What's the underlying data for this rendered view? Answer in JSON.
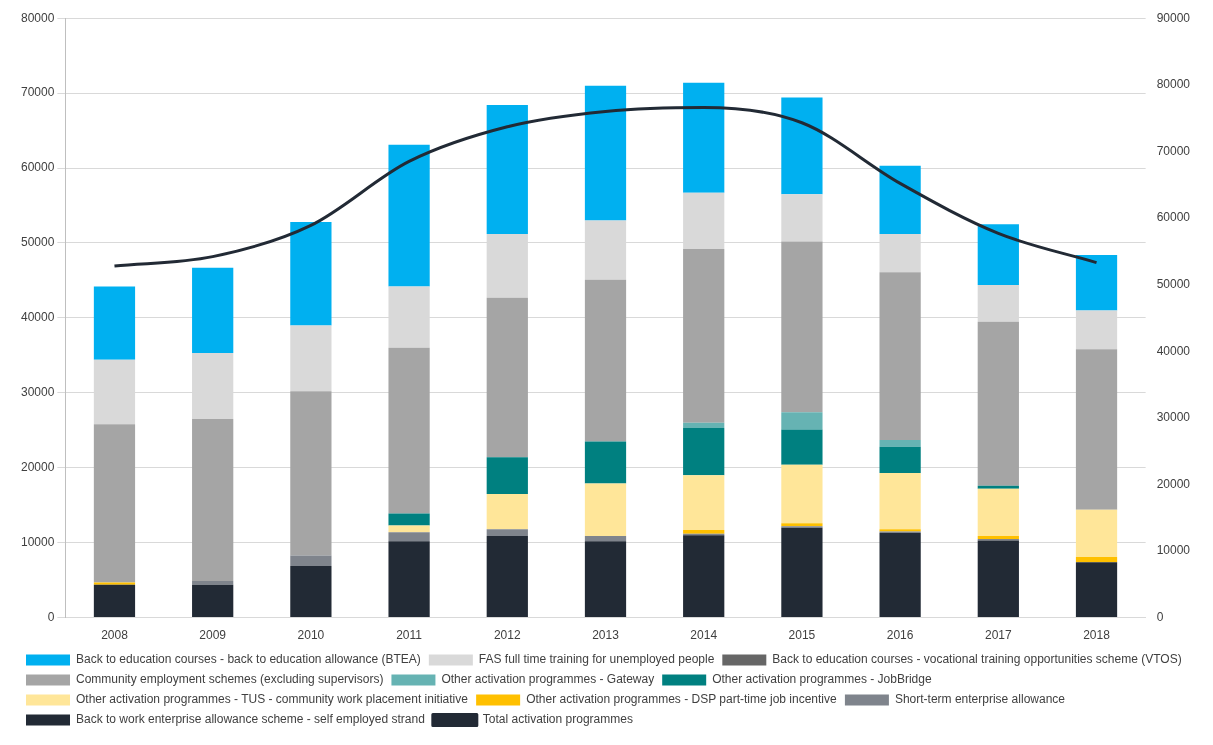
{
  "chart_data": {
    "type": "bar",
    "stacked": true,
    "categories": [
      "2008",
      "2009",
      "2010",
      "2011",
      "2012",
      "2013",
      "2014",
      "2015",
      "2016",
      "2017",
      "2018"
    ],
    "series": [
      {
        "name": "Back to work enterprise allowance scheme - self employed strand",
        "color": "#222a35",
        "values": [
          4400,
          4400,
          6900,
          10200,
          10900,
          10200,
          11000,
          12000,
          11300,
          10300,
          7400
        ]
      },
      {
        "name": "Short-term enterprise allowance",
        "color": "#7f848c",
        "values": [
          0,
          500,
          1400,
          1200,
          900,
          700,
          200,
          200,
          200,
          200,
          0
        ]
      },
      {
        "name": "Other activation programmes - DSP part-time job incentive",
        "color": "#ffc000",
        "values": [
          300,
          0,
          0,
          0,
          0,
          0,
          500,
          400,
          300,
          400,
          700
        ]
      },
      {
        "name": "Other activation programmes - TUS - community work placement initiative",
        "color": "#ffe699",
        "values": [
          0,
          0,
          0,
          900,
          4700,
          7000,
          7300,
          7800,
          7500,
          6300,
          6300
        ]
      },
      {
        "name": "Other activation programmes - JobBridge",
        "color": "#008080",
        "values": [
          0,
          0,
          0,
          1600,
          4900,
          5600,
          6300,
          4700,
          3500,
          400,
          0
        ]
      },
      {
        "name": "Other activation programmes - Gateway",
        "color": "#66b3b3",
        "values": [
          0,
          0,
          0,
          0,
          0,
          0,
          700,
          2300,
          900,
          0,
          0
        ]
      },
      {
        "name": "Community employment schemes (excluding supervisors)",
        "color": "#a5a5a5",
        "values": [
          21100,
          21600,
          21900,
          22100,
          21300,
          21600,
          23200,
          22800,
          22400,
          21900,
          21400
        ]
      },
      {
        "name": "Back to education courses - vocational training opportunities scheme (VTOS)",
        "color": "#666666",
        "values": [
          0,
          0,
          0,
          0,
          0,
          0,
          0,
          0,
          0,
          0,
          0
        ]
      },
      {
        "name": "FAS full time training for unemployed people",
        "color": "#d9d9d9",
        "values": [
          8600,
          8800,
          8800,
          8200,
          8500,
          7900,
          7500,
          6300,
          5100,
          4900,
          5200
        ]
      },
      {
        "name": "Back to education courses - back to education allowance (BTEA)",
        "color": "#00b0f0",
        "values": [
          9800,
          11400,
          13800,
          18900,
          17200,
          18000,
          14700,
          12900,
          9100,
          8100,
          7400
        ]
      },
      {
        "name": "Total activation programmes",
        "type": "line",
        "axis": "y2",
        "color": "#222a35",
        "values": [
          52800,
          54200,
          58900,
          68500,
          73700,
          76000,
          76600,
          74300,
          65200,
          57700,
          53300
        ]
      }
    ],
    "ylim": [
      0,
      80000
    ],
    "yticks": [
      0,
      10000,
      20000,
      30000,
      40000,
      50000,
      60000,
      70000,
      80000
    ],
    "y2lim": [
      0,
      90000
    ],
    "y2ticks": [
      0,
      10000,
      20000,
      30000,
      40000,
      50000,
      60000,
      70000,
      80000,
      90000
    ],
    "grid": "y",
    "legend": "bottom",
    "marker": "none"
  }
}
